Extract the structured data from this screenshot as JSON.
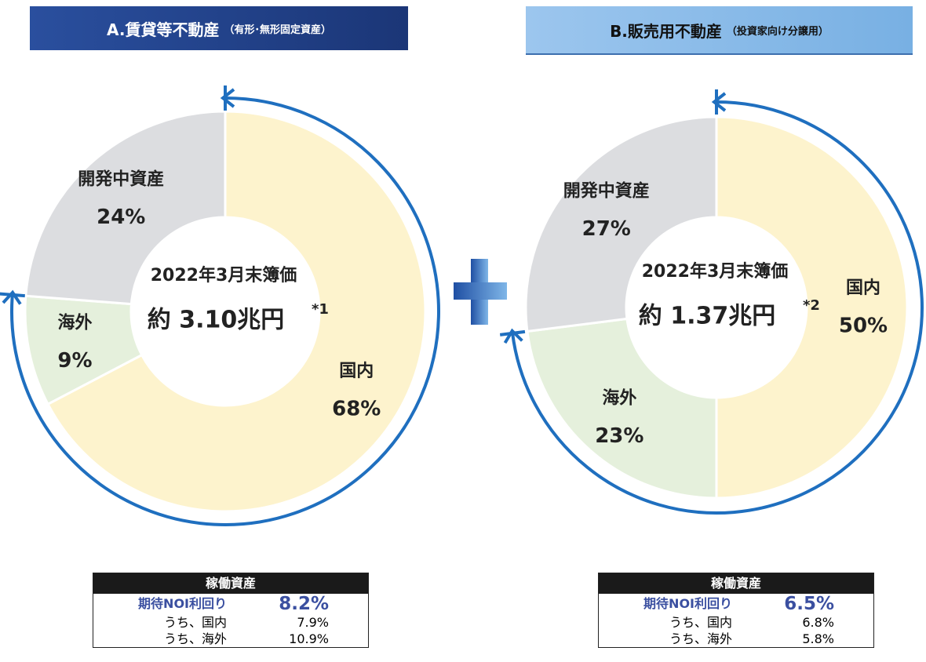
{
  "chart_data": [
    {
      "type": "pie",
      "title": "A.賃貸等不動産",
      "subtitle": "（有形･無形固定資産）",
      "center_label": "2022年3月末簿価",
      "total_label": "約 3.10兆円",
      "footnote": "*1",
      "categories": [
        "国内",
        "海外",
        "開発中資産"
      ],
      "values": [
        68,
        9,
        24
      ],
      "value_labels": [
        "68%",
        "9%",
        "24%"
      ],
      "colors": [
        "#fdf3cd",
        "#e5f0dc",
        "#dcdde0"
      ]
    },
    {
      "type": "pie",
      "title": "B.販売用不動産",
      "subtitle": "（投資家向け分譲用）",
      "center_label": "2022年3月末簿価",
      "total_label": "約 1.37兆円",
      "footnote": "*2",
      "categories": [
        "国内",
        "海外",
        "開発中資産"
      ],
      "values": [
        50,
        23,
        27
      ],
      "value_labels": [
        "50%",
        "23%",
        "27%"
      ],
      "colors": [
        "#fdf3cd",
        "#e5f0dc",
        "#dcdde0"
      ]
    }
  ],
  "tables": [
    {
      "header": "稼働資産",
      "rows": [
        [
          "期待NOI利回り",
          "8.2%"
        ],
        [
          "うち、国内",
          "7.9%"
        ],
        [
          "うち、海外",
          "10.9%"
        ]
      ]
    },
    {
      "header": "稼働資産",
      "rows": [
        [
          "期待NOI利回り",
          "6.5%"
        ],
        [
          "うち、国内",
          "6.8%"
        ],
        [
          "うち、海外",
          "5.8%"
        ]
      ]
    }
  ]
}
